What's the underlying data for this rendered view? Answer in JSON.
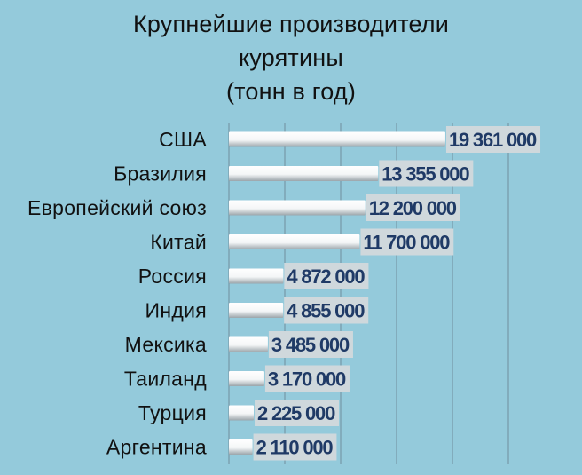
{
  "chart_data": {
    "type": "bar",
    "orientation": "horizontal",
    "title": [
      "Крупнейшие производители",
      "курятины",
      "(тонн в год)"
    ],
    "categories": [
      "США",
      "Бразилия",
      "Европейский союз",
      "Китай",
      "Россия",
      "Индия",
      "Мексика",
      "Таиланд",
      "Турция",
      "Аргентина"
    ],
    "values": [
      19361000,
      13355000,
      12200000,
      11700000,
      4872000,
      4855000,
      3485000,
      3170000,
      2225000,
      2110000
    ],
    "value_labels": [
      "19 361 000",
      "13 355 000",
      "12 200 000",
      "11 700 000",
      "4 872 000",
      "4 855 000",
      "3 485 000",
      "3 170 000",
      "2 225 000",
      "2 110 000"
    ],
    "xlim": [
      0,
      25000000
    ],
    "grid": true,
    "legend": "none",
    "colors": {
      "background": "#94cadb",
      "label_box": "#cfd8dc",
      "value_text": "#1f3a66"
    }
  }
}
